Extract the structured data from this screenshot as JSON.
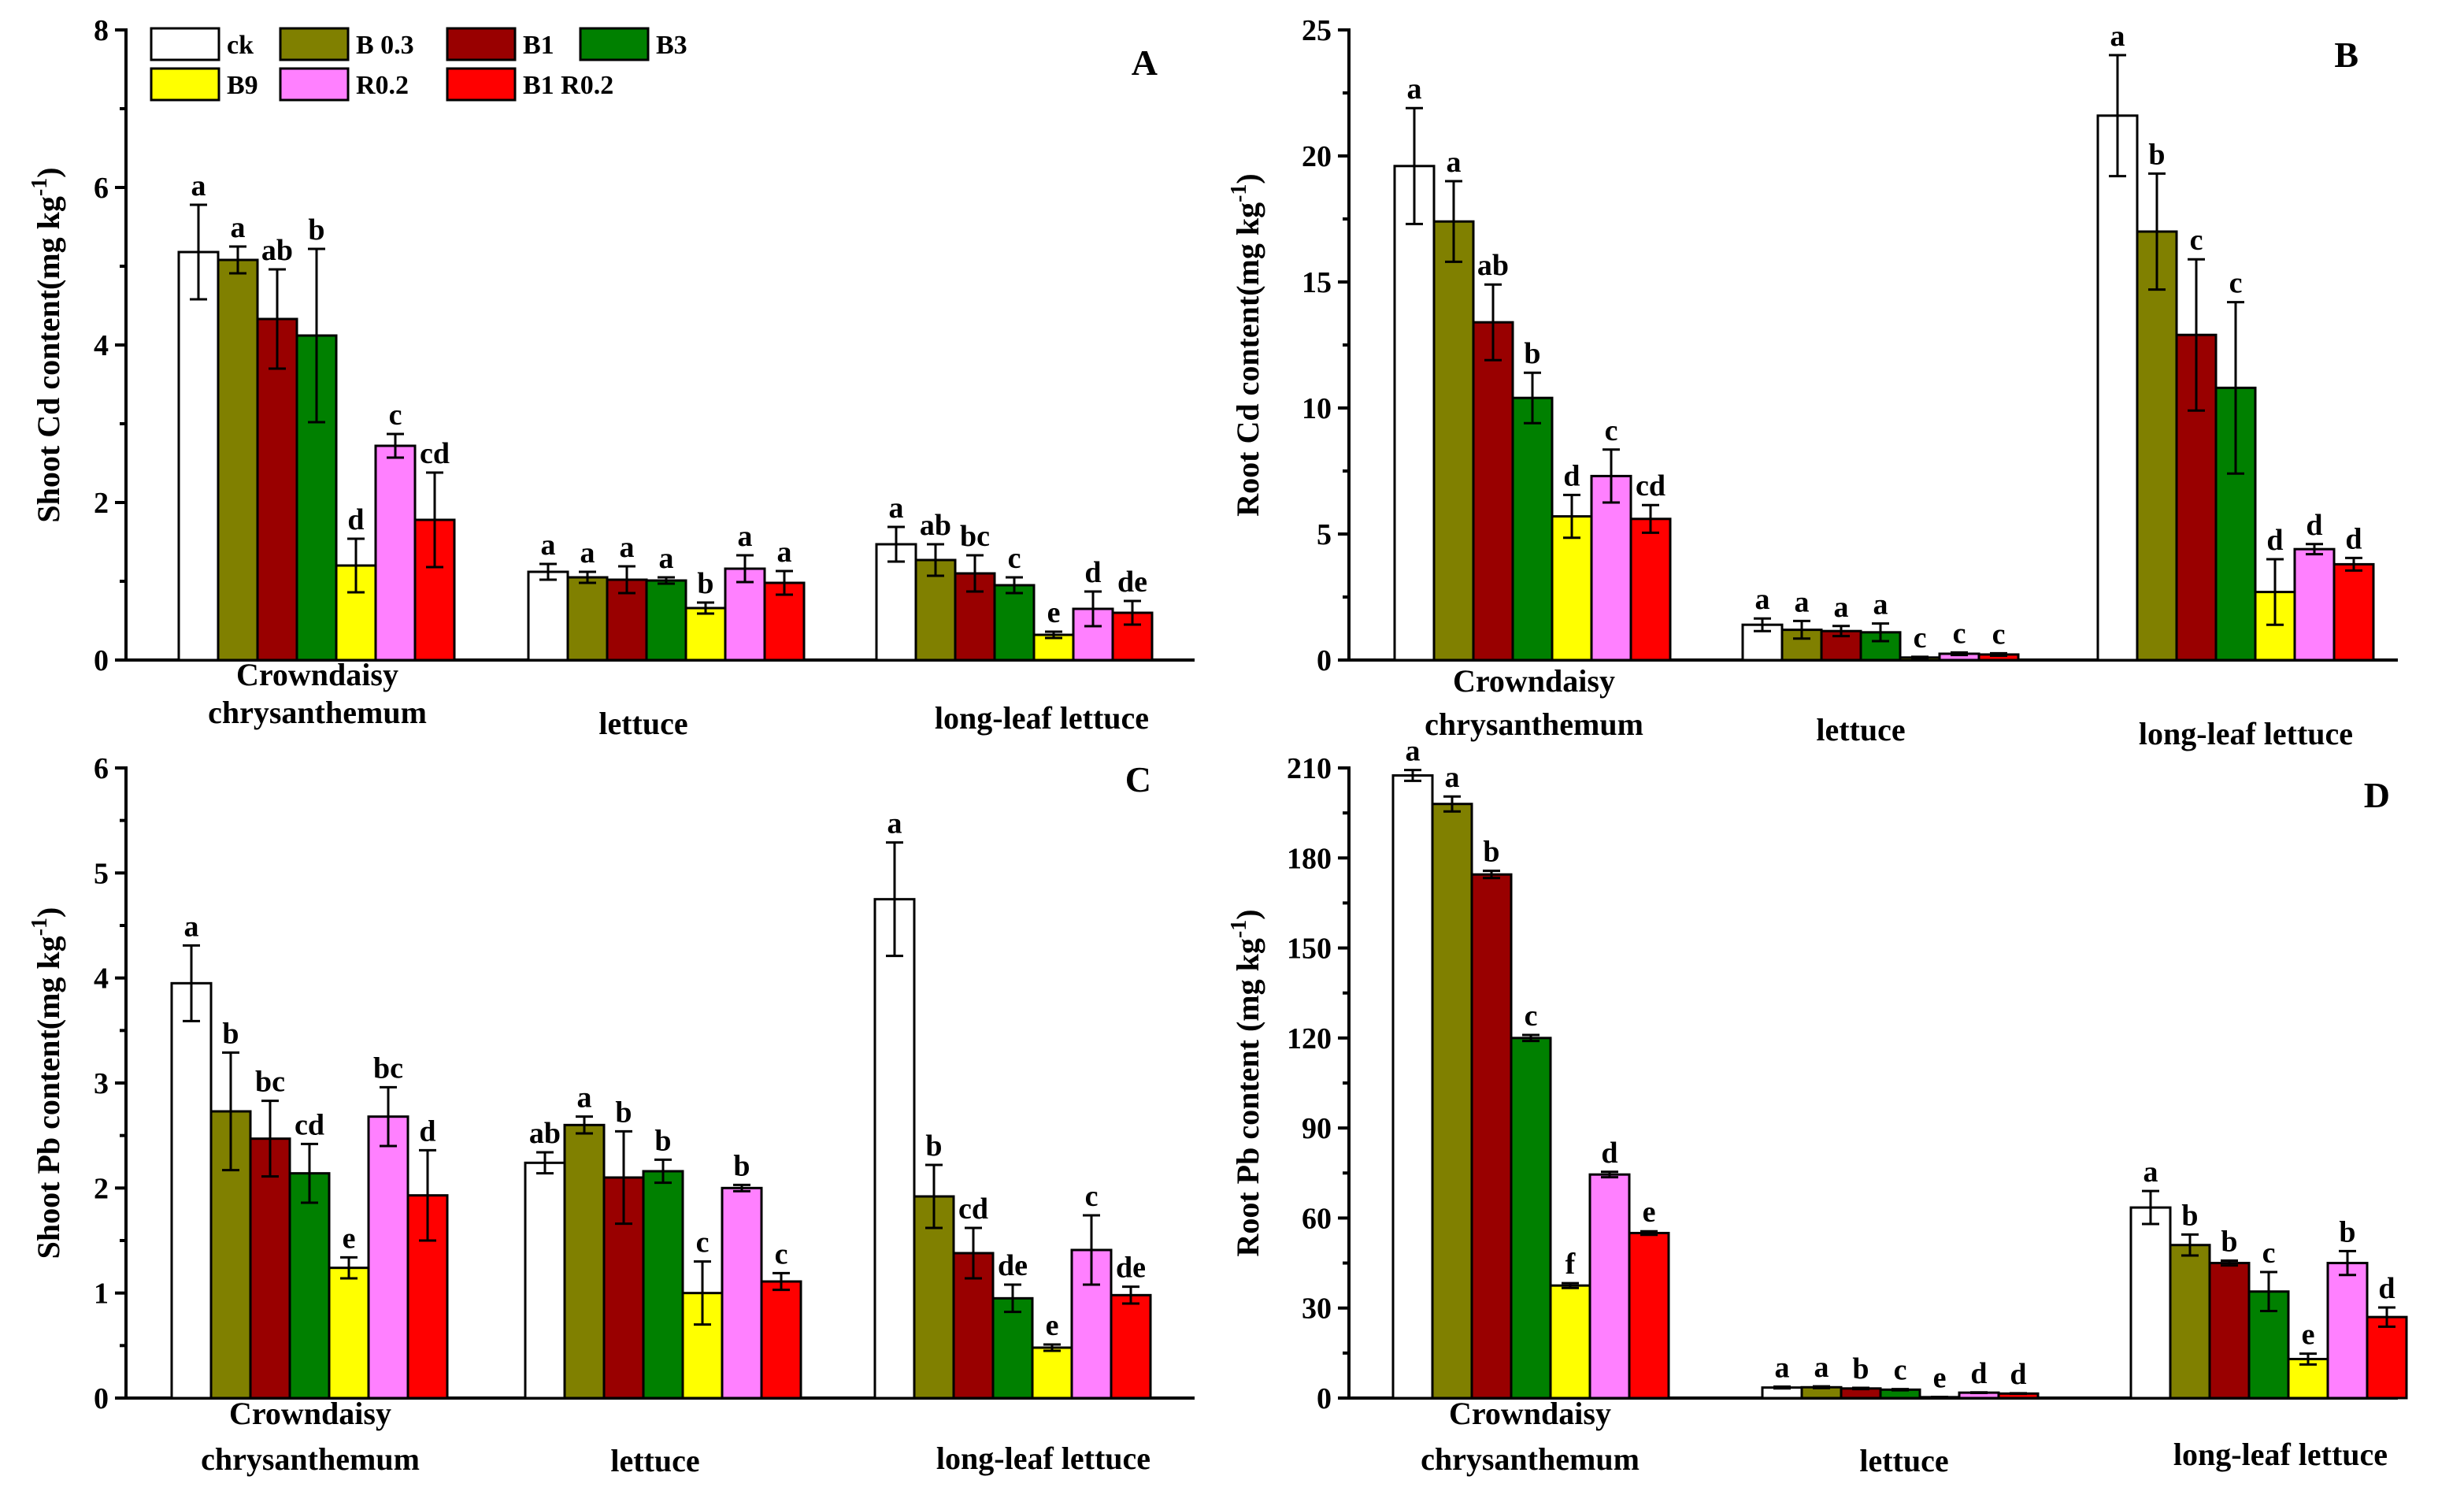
{
  "legend": [
    {
      "label": "ck",
      "color": "#ffffff"
    },
    {
      "label": "B 0.3",
      "color": "#808000"
    },
    {
      "label": "B1",
      "color": "#990000"
    },
    {
      "label": "B3",
      "color": "#008000"
    },
    {
      "label": "B9",
      "color": "#ffff00"
    },
    {
      "label": "R0.2",
      "color": "#ff80ff"
    },
    {
      "label": "B1 R0.2",
      "color": "#ff0000"
    }
  ],
  "chart_data": [
    {
      "panel": "A",
      "type": "bar",
      "ylabel": "Shoot Cd content(mg kg⁻¹)",
      "ylim": [
        0,
        8
      ],
      "yticks": [
        0,
        2,
        4,
        6,
        8
      ],
      "categories": [
        [
          "Crowndaisy",
          "chrysanthemum"
        ],
        [
          "lettuce"
        ],
        [
          "long-leaf lettuce"
        ]
      ],
      "series": [
        {
          "name": "ck",
          "values": [
            5.18,
            1.12,
            1.47
          ],
          "errors": [
            0.6,
            0.1,
            0.22
          ],
          "letters": [
            "a",
            "a",
            "a"
          ]
        },
        {
          "name": "B 0.3",
          "values": [
            5.08,
            1.05,
            1.27
          ],
          "errors": [
            0.17,
            0.07,
            0.2
          ],
          "letters": [
            "a",
            "a",
            "ab"
          ]
        },
        {
          "name": "B1",
          "values": [
            4.33,
            1.02,
            1.1
          ],
          "errors": [
            0.63,
            0.17,
            0.23
          ],
          "letters": [
            "ab",
            "a",
            "bc"
          ]
        },
        {
          "name": "B3",
          "values": [
            4.12,
            1.01,
            0.95
          ],
          "errors": [
            1.1,
            0.04,
            0.1
          ],
          "letters": [
            "b",
            "a",
            "c"
          ]
        },
        {
          "name": "B9",
          "values": [
            1.2,
            0.66,
            0.32
          ],
          "errors": [
            0.34,
            0.07,
            0.04
          ],
          "letters": [
            "d",
            "b",
            "e"
          ]
        },
        {
          "name": "R0.2",
          "values": [
            2.72,
            1.16,
            0.65
          ],
          "errors": [
            0.15,
            0.17,
            0.22
          ],
          "letters": [
            "c",
            "a",
            "d"
          ]
        },
        {
          "name": "B1 R0.2",
          "values": [
            1.78,
            0.98,
            0.6
          ],
          "errors": [
            0.6,
            0.15,
            0.15
          ],
          "letters": [
            "cd",
            "a",
            "de"
          ]
        }
      ]
    },
    {
      "panel": "B",
      "type": "bar",
      "ylabel": "Root Cd content(mg kg⁻¹)",
      "ylim": [
        0,
        25
      ],
      "yticks": [
        0,
        5,
        10,
        15,
        20,
        25
      ],
      "categories": [
        [
          "Crowndaisy",
          "chrysanthemum"
        ],
        [
          "lettuce"
        ],
        [
          "long-leaf lettuce"
        ]
      ],
      "series": [
        {
          "name": "ck",
          "values": [
            19.6,
            1.4,
            21.6
          ],
          "errors": [
            2.3,
            0.25,
            2.4
          ],
          "letters": [
            "a",
            "a",
            "a"
          ]
        },
        {
          "name": "B 0.3",
          "values": [
            17.4,
            1.2,
            17.0
          ],
          "errors": [
            1.6,
            0.35,
            2.3
          ],
          "letters": [
            "a",
            "a",
            "b"
          ]
        },
        {
          "name": "B1",
          "values": [
            13.4,
            1.15,
            12.9
          ],
          "errors": [
            1.5,
            0.2,
            3.0
          ],
          "letters": [
            "ab",
            "a",
            "c"
          ]
        },
        {
          "name": "B3",
          "values": [
            10.4,
            1.1,
            10.8
          ],
          "errors": [
            1.0,
            0.35,
            3.4
          ],
          "letters": [
            "b",
            "a",
            "c"
          ]
        },
        {
          "name": "B9",
          "values": [
            5.7,
            0.1,
            2.7
          ],
          "errors": [
            0.85,
            0.03,
            1.3
          ],
          "letters": [
            "d",
            "c",
            "d"
          ]
        },
        {
          "name": "R0.2",
          "values": [
            7.3,
            0.25,
            4.4
          ],
          "errors": [
            1.05,
            0.05,
            0.2
          ],
          "letters": [
            "c",
            "c",
            "d"
          ]
        },
        {
          "name": "B1 R0.2",
          "values": [
            5.6,
            0.22,
            3.8
          ],
          "errors": [
            0.55,
            0.05,
            0.25
          ],
          "letters": [
            "cd",
            "c",
            "d"
          ]
        }
      ]
    },
    {
      "panel": "C",
      "type": "bar",
      "ylabel": "Shoot Pb content(mg kg⁻¹)",
      "ylim": [
        0,
        6
      ],
      "yticks": [
        0,
        1,
        2,
        3,
        4,
        5,
        6
      ],
      "categories": [
        [
          "Crowndaisy",
          "chrysanthemum"
        ],
        [
          "lettuce"
        ],
        [
          "long-leaf lettuce"
        ]
      ],
      "series": [
        {
          "name": "ck",
          "values": [
            3.95,
            2.24,
            4.75
          ],
          "errors": [
            0.36,
            0.1,
            0.54
          ],
          "letters": [
            "a",
            "ab",
            "a"
          ]
        },
        {
          "name": "B 0.3",
          "values": [
            2.73,
            2.6,
            1.92
          ],
          "errors": [
            0.56,
            0.08,
            0.3
          ],
          "letters": [
            "b",
            "a",
            "b"
          ]
        },
        {
          "name": "B1",
          "values": [
            2.47,
            2.1,
            1.38
          ],
          "errors": [
            0.36,
            0.44,
            0.24
          ],
          "letters": [
            "bc",
            "b",
            "cd"
          ]
        },
        {
          "name": "B3",
          "values": [
            2.14,
            2.16,
            0.95
          ],
          "errors": [
            0.28,
            0.11,
            0.13
          ],
          "letters": [
            "cd",
            "b",
            "de"
          ]
        },
        {
          "name": "B9",
          "values": [
            1.24,
            1.0,
            0.48
          ],
          "errors": [
            0.1,
            0.3,
            0.03
          ],
          "letters": [
            "e",
            "c",
            "e"
          ]
        },
        {
          "name": "R0.2",
          "values": [
            2.68,
            2.0,
            1.41
          ],
          "errors": [
            0.28,
            0.03,
            0.33
          ],
          "letters": [
            "bc",
            "b",
            "c"
          ]
        },
        {
          "name": "B1 R0.2",
          "values": [
            1.93,
            1.11,
            0.98
          ],
          "errors": [
            0.43,
            0.08,
            0.08
          ],
          "letters": [
            "d",
            "c",
            "de"
          ]
        }
      ]
    },
    {
      "panel": "D",
      "type": "bar",
      "ylabel": "Root Pb content (mg kg⁻¹)",
      "ylim": [
        0,
        210
      ],
      "yticks": [
        0,
        30,
        60,
        90,
        120,
        150,
        180,
        210
      ],
      "categories": [
        [
          "Crowndaisy",
          "chrysanthemum"
        ],
        [
          "lettuce"
        ],
        [
          "long-leaf lettuce"
        ]
      ],
      "series": [
        {
          "name": "ck",
          "values": [
            207.5,
            3.5,
            63.5
          ],
          "errors": [
            1.8,
            0.3,
            5.5
          ],
          "letters": [
            "a",
            "a",
            "a"
          ]
        },
        {
          "name": "B 0.3",
          "values": [
            198,
            3.6,
            51
          ],
          "errors": [
            2.5,
            0.3,
            3.5
          ],
          "letters": [
            "a",
            "a",
            "b"
          ]
        },
        {
          "name": "B1",
          "values": [
            174.5,
            3.2,
            45
          ],
          "errors": [
            1.2,
            0.2,
            0.8
          ],
          "letters": [
            "b",
            "b",
            "b"
          ]
        },
        {
          "name": "B3",
          "values": [
            120,
            2.8,
            35.5
          ],
          "errors": [
            1.0,
            0.2,
            6.5
          ],
          "letters": [
            "c",
            "c",
            "c"
          ]
        },
        {
          "name": "B9",
          "values": [
            37.5,
            0.3,
            13
          ],
          "errors": [
            0.8,
            0.05,
            1.8
          ],
          "letters": [
            "f",
            "e",
            "e"
          ]
        },
        {
          "name": "R0.2",
          "values": [
            74.5,
            1.8,
            45
          ],
          "errors": [
            0.9,
            0.1,
            4.0
          ],
          "letters": [
            "d",
            "d",
            "b"
          ]
        },
        {
          "name": "B1 R0.2",
          "values": [
            55,
            1.5,
            27
          ],
          "errors": [
            0.6,
            0.1,
            3.2
          ],
          "letters": [
            "e",
            "d",
            "d"
          ]
        }
      ]
    }
  ]
}
